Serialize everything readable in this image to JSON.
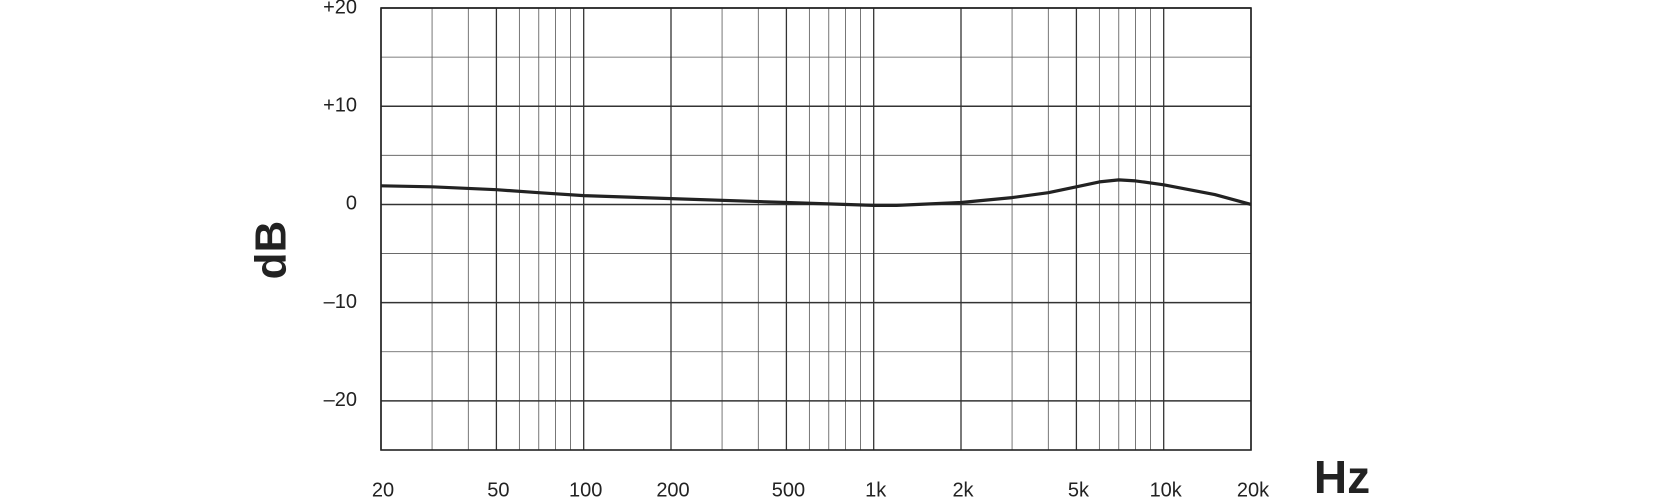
{
  "chart_data": {
    "type": "line",
    "x_label": "Hz",
    "y_label": "dB",
    "log_x": true,
    "grid": true,
    "color": "#222222",
    "x": [
      20,
      30,
      50,
      70,
      100,
      200,
      500,
      1000,
      1200,
      2000,
      3000,
      4000,
      5000,
      6000,
      7000,
      8000,
      10000,
      15000,
      20000
    ],
    "values": [
      1.9,
      1.8,
      1.5,
      1.2,
      0.9,
      0.6,
      0.2,
      -0.1,
      -0.1,
      0.2,
      0.7,
      1.2,
      1.8,
      2.3,
      2.5,
      2.4,
      2.0,
      1.0,
      0
    ],
    "xlim": [
      20,
      20000
    ],
    "ylim": [
      -25,
      20
    ],
    "xticks": [
      20,
      50,
      100,
      200,
      500,
      {
        "value": 1000,
        "label": "1k"
      },
      {
        "value": 2000,
        "label": "2k"
      },
      {
        "value": 5000,
        "label": "5k"
      },
      {
        "value": 10000,
        "label": "10k"
      },
      {
        "value": 20000,
        "label": "20k"
      }
    ],
    "minor_xticks": [
      30,
      40,
      60,
      70,
      80,
      90,
      300,
      400,
      600,
      700,
      800,
      900,
      3000,
      4000,
      6000,
      7000,
      8000,
      9000
    ],
    "yticks": [
      {
        "value": 20,
        "label": "+20"
      },
      {
        "value": 10,
        "label": "+10"
      },
      0,
      {
        "value": -10,
        "label": "–10"
      },
      {
        "value": -20,
        "label": "–20"
      }
    ],
    "minor_yticks": [
      15,
      5,
      -5,
      -15
    ]
  }
}
